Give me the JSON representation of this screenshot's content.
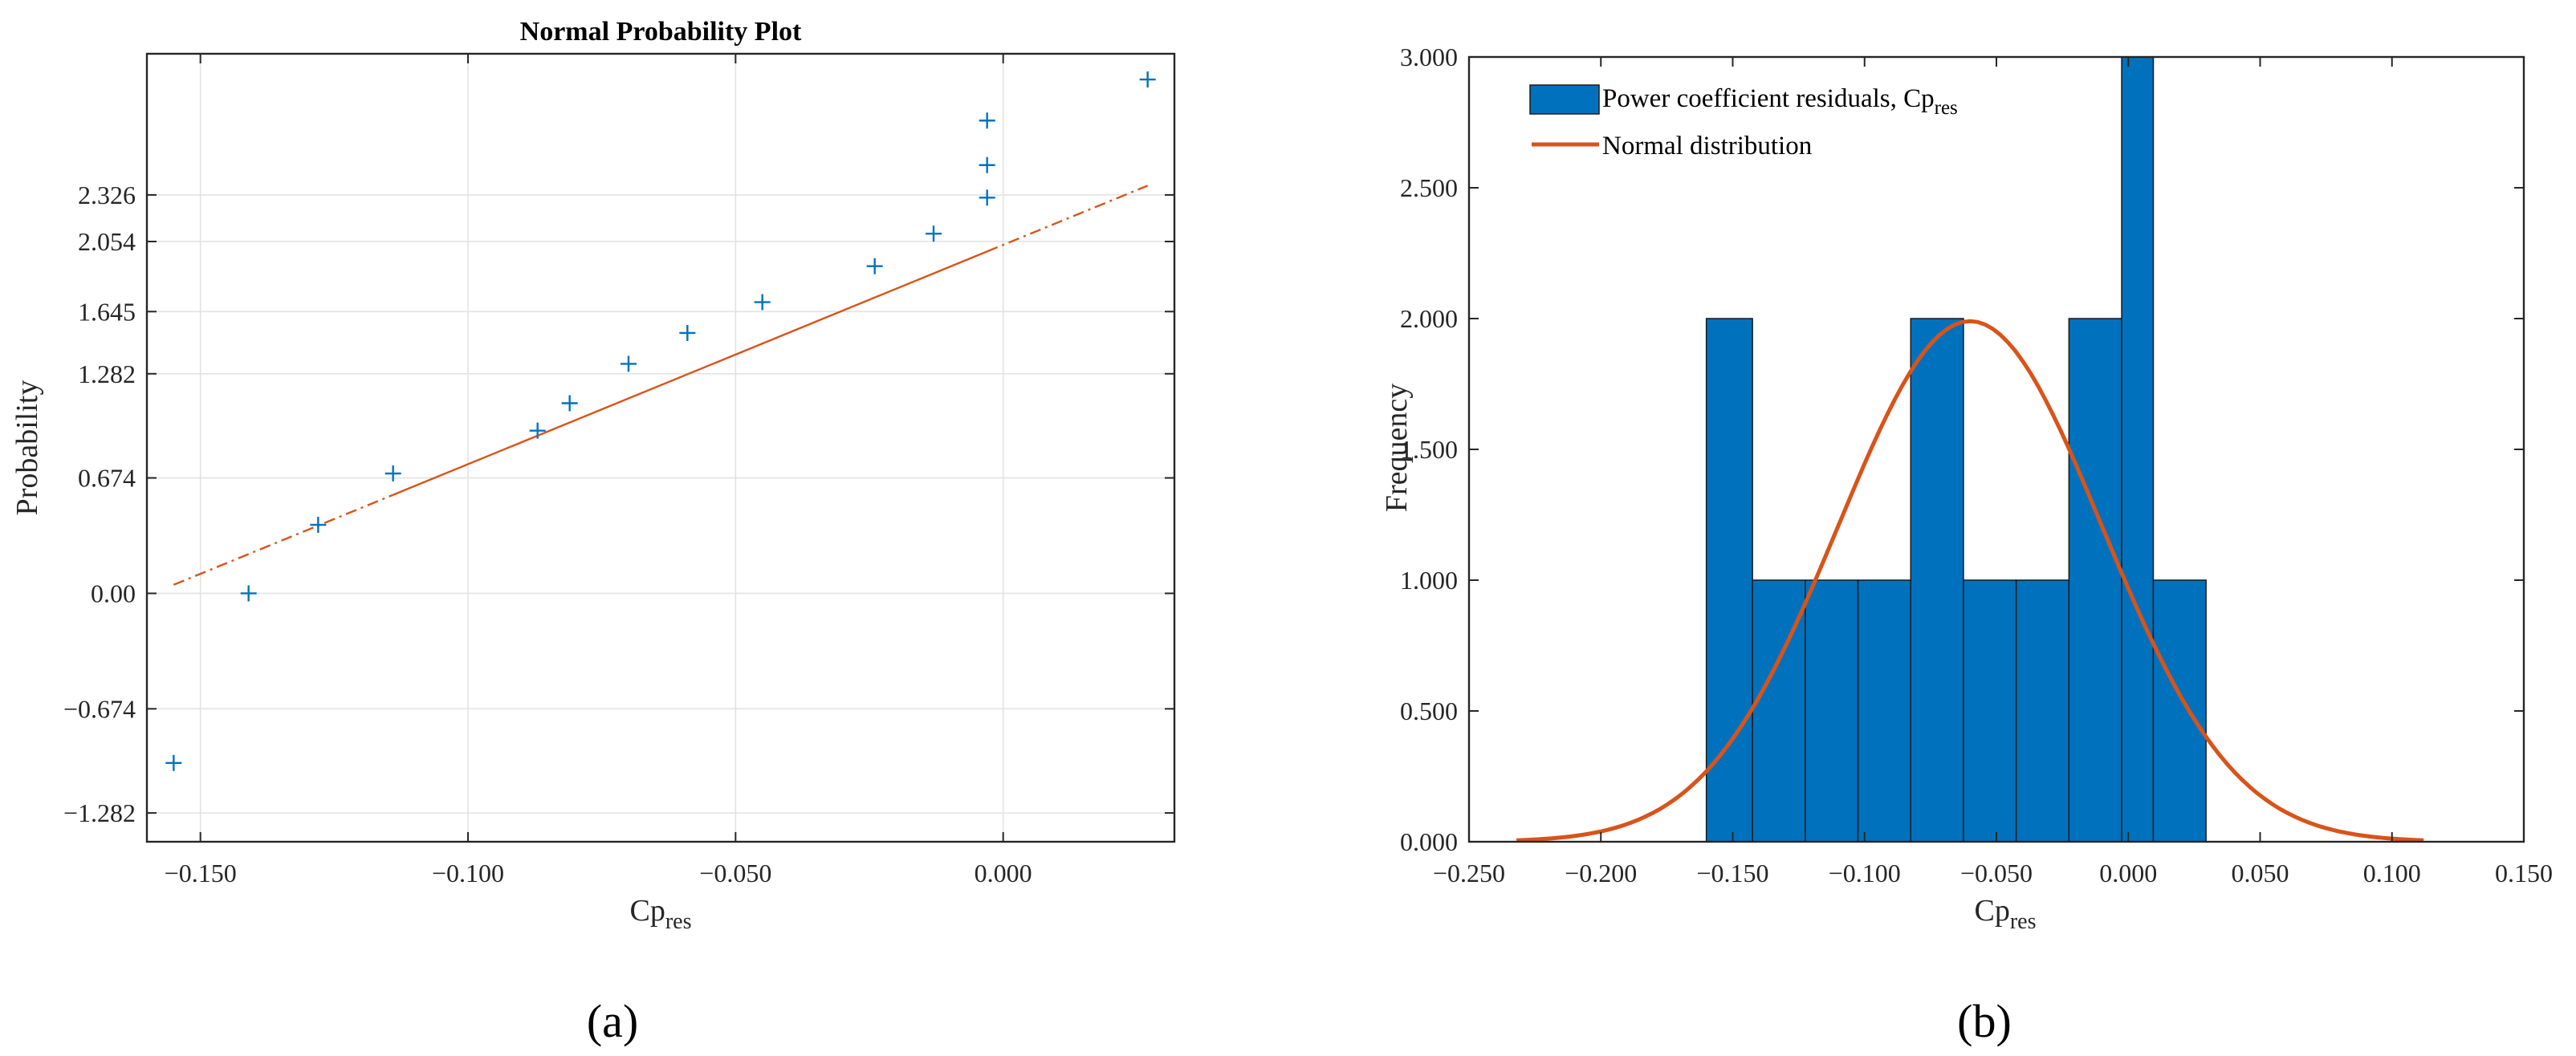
{
  "chart_data": [
    {
      "type": "scatter",
      "panel_label": "(a)",
      "title": "Normal Probability Plot",
      "xlabel": "Cp",
      "xlabel_sub": "res",
      "ylabel": "Probability",
      "xlim": [
        -0.16,
        0.032
      ],
      "ylim": [
        -1.45,
        3.15
      ],
      "xticks": [
        -0.15,
        -0.1,
        -0.05,
        0.0
      ],
      "xtick_labels": [
        "−0.150",
        "−0.100",
        "−0.050",
        "0.000"
      ],
      "yticks": [
        -1.282,
        -0.674,
        0.0,
        0.674,
        1.282,
        1.645,
        2.054,
        2.326
      ],
      "ytick_labels": [
        "−1.282",
        "−0.674",
        "0.00",
        "0.674",
        "1.282",
        "1.645",
        "2.054",
        "2.326"
      ],
      "grid": true,
      "marker_color": "#0072BD",
      "line_color": "#D95319",
      "points": [
        {
          "x": -0.155,
          "y": -0.99
        },
        {
          "x": -0.141,
          "y": 0.0
        },
        {
          "x": -0.128,
          "y": 0.4
        },
        {
          "x": -0.114,
          "y": 0.7
        },
        {
          "x": -0.087,
          "y": 0.95
        },
        {
          "x": -0.081,
          "y": 1.11
        },
        {
          "x": -0.07,
          "y": 1.34
        },
        {
          "x": -0.059,
          "y": 1.52
        },
        {
          "x": -0.045,
          "y": 1.7
        },
        {
          "x": -0.024,
          "y": 1.91
        },
        {
          "x": -0.013,
          "y": 2.1
        },
        {
          "x": -0.003,
          "y": 2.31
        },
        {
          "x": -0.003,
          "y": 2.5
        },
        {
          "x": -0.003,
          "y": 2.76
        },
        {
          "x": 0.027,
          "y": 3.0
        }
      ],
      "fit_line": {
        "x": [
          -0.155,
          0.027
        ],
        "y": [
          0.05,
          2.38
        ]
      },
      "fit_line_dashed_before_x": -0.114,
      "fit_line_dashed_after_x": -0.003
    },
    {
      "type": "bar",
      "panel_label": "(b)",
      "xlabel": "Cp",
      "xlabel_sub": "res",
      "ylabel": "Frequency",
      "xlim": [
        -0.25,
        0.15
      ],
      "ylim": [
        0,
        3.0
      ],
      "xticks": [
        -0.25,
        -0.2,
        -0.15,
        -0.1,
        -0.05,
        0.0,
        0.05,
        0.1,
        0.15
      ],
      "xtick_labels": [
        "−0.250",
        "−0.200",
        "−0.150",
        "−0.100",
        "−0.050",
        "0.000",
        "0.050",
        "0.100",
        "0.150"
      ],
      "yticks": [
        0,
        0.5,
        1.0,
        1.5,
        2.0,
        2.5,
        3.0
      ],
      "ytick_labels": [
        "0.000",
        "0.500",
        "1.000",
        "1.500",
        "2.000",
        "2.500",
        "3.000"
      ],
      "grid": false,
      "bar_color": "#0072BD",
      "curve_color": "#D95319",
      "legend_location": "top-left",
      "bins": [
        {
          "x0": -0.16,
          "x1": -0.1425,
          "count": 2
        },
        {
          "x0": -0.1425,
          "x1": -0.1225,
          "count": 1
        },
        {
          "x0": -0.1225,
          "x1": -0.1025,
          "count": 1
        },
        {
          "x0": -0.1025,
          "x1": -0.0825,
          "count": 1
        },
        {
          "x0": -0.0825,
          "x1": -0.0625,
          "count": 2
        },
        {
          "x0": -0.0625,
          "x1": -0.0425,
          "count": 1
        },
        {
          "x0": -0.0425,
          "x1": -0.0225,
          "count": 1
        },
        {
          "x0": -0.0225,
          "x1": -0.0025,
          "count": 2
        },
        {
          "x0": -0.0025,
          "x1": 0.0095,
          "count": 3
        },
        {
          "x0": 0.0095,
          "x1": 0.0295,
          "count": 1
        }
      ],
      "normal_curve": {
        "mean": -0.06,
        "sd": 0.05,
        "peak": 1.99,
        "x_range": [
          -0.232,
          0.112
        ]
      },
      "series": [
        {
          "name": "Power coefficient residuals,  Cp",
          "name_sub": "res"
        },
        {
          "name": "Normal distribution"
        }
      ]
    }
  ]
}
